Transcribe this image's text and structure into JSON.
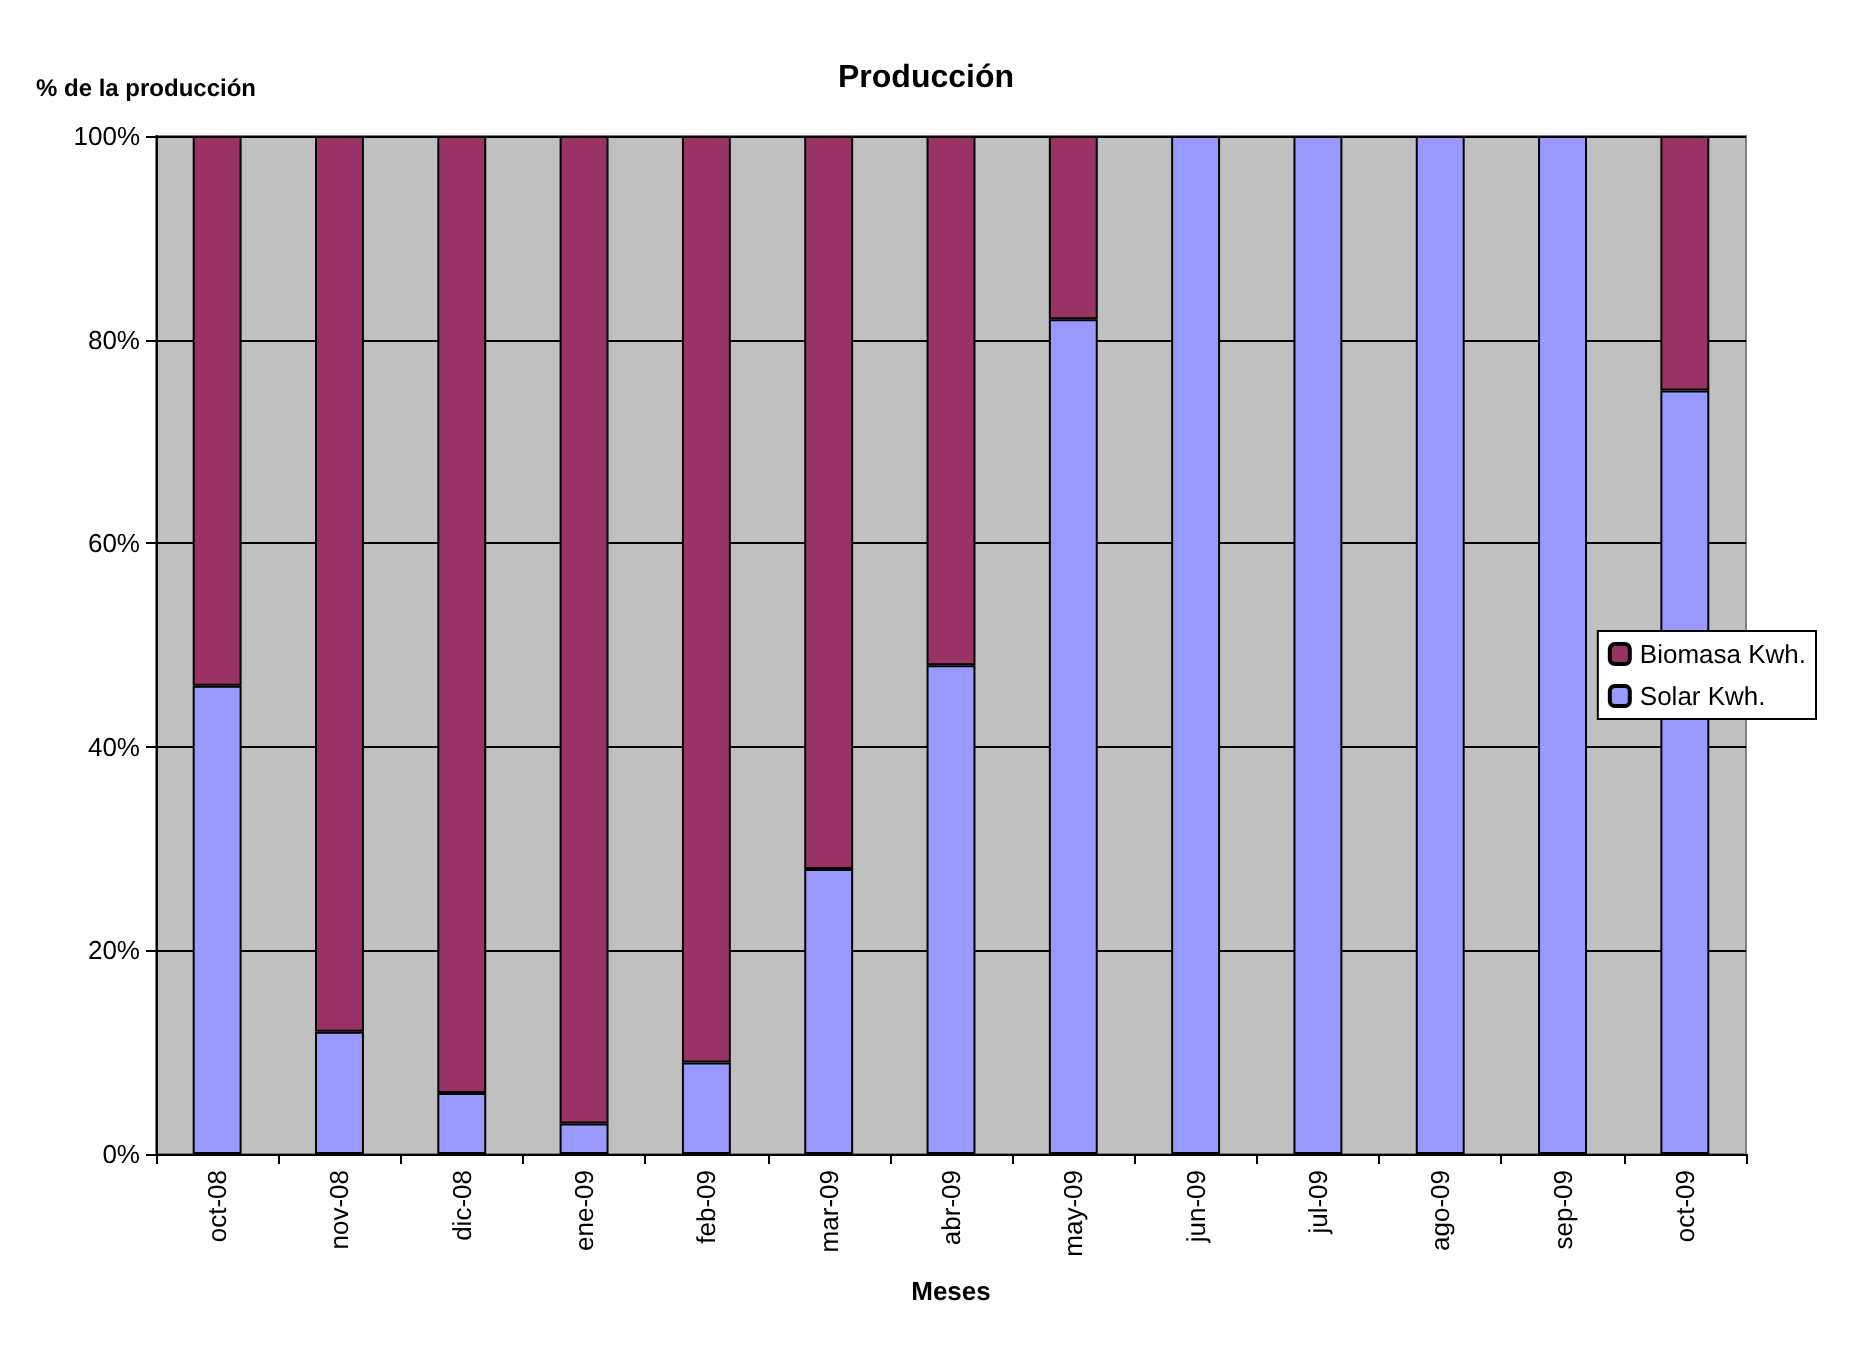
{
  "chart_data": {
    "type": "bar",
    "title": "Producción",
    "xlabel": "Meses",
    "ylabel": "% de la producción",
    "stacked": true,
    "categories": [
      "oct-08",
      "nov-08",
      "dic-08",
      "ene-09",
      "feb-09",
      "mar-09",
      "abr-09",
      "may-09",
      "jun-09",
      "jul-09",
      "ago-09",
      "sep-09",
      "oct-09"
    ],
    "series": [
      {
        "name": "Solar Kwh.",
        "color": "#9999ff",
        "values": [
          46,
          12,
          6,
          3,
          9,
          28,
          48,
          82,
          100,
          100,
          100,
          100,
          75
        ]
      },
      {
        "name": "Biomasa Kwh.",
        "color": "#993366",
        "values": [
          54,
          88,
          94,
          97,
          91,
          72,
          52,
          18,
          0,
          0,
          0,
          0,
          25
        ]
      }
    ],
    "ylim": [
      0,
      100
    ],
    "yticks": [
      {
        "value": 0,
        "label": "0%"
      },
      {
        "value": 20,
        "label": "20%"
      },
      {
        "value": 40,
        "label": "40%"
      },
      {
        "value": 60,
        "label": "60%"
      },
      {
        "value": 80,
        "label": "80%"
      },
      {
        "value": 100,
        "label": "100%"
      }
    ],
    "grid": "y",
    "legend": "right"
  }
}
